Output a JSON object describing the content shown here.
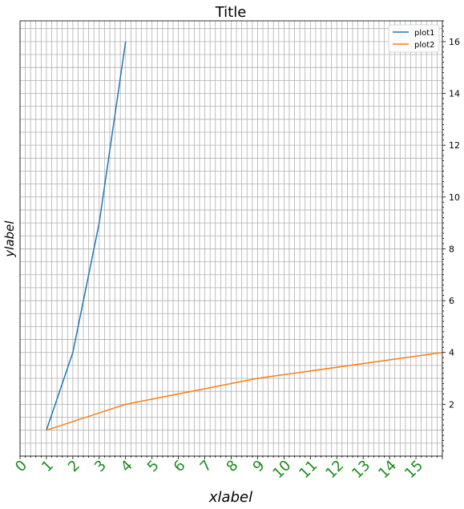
{
  "chart_data": {
    "type": "line",
    "title": "Title",
    "xlabel": "xlabel",
    "ylabel": "ylabel",
    "xlim": [
      0,
      16
    ],
    "ylim": [
      0,
      16.8
    ],
    "x_ticks": [
      "0",
      "1",
      "2",
      "3",
      "4",
      "5",
      "6",
      "7",
      "8",
      "9",
      "10",
      "11",
      "12",
      "13",
      "14",
      "15"
    ],
    "y_ticks": [
      "2",
      "4",
      "6",
      "8",
      "10",
      "12",
      "14",
      "16"
    ],
    "y_axis_side": "right",
    "grid": true,
    "legend_position": "top-right",
    "series": [
      {
        "name": "plot1",
        "color": "#1f77b4",
        "x": [
          1,
          2,
          3,
          4
        ],
        "y": [
          1,
          4,
          9,
          16
        ]
      },
      {
        "name": "plot2",
        "color": "#ff7f0e",
        "x": [
          1,
          4,
          9,
          16
        ],
        "y": [
          1,
          2,
          3,
          4
        ]
      }
    ]
  }
}
